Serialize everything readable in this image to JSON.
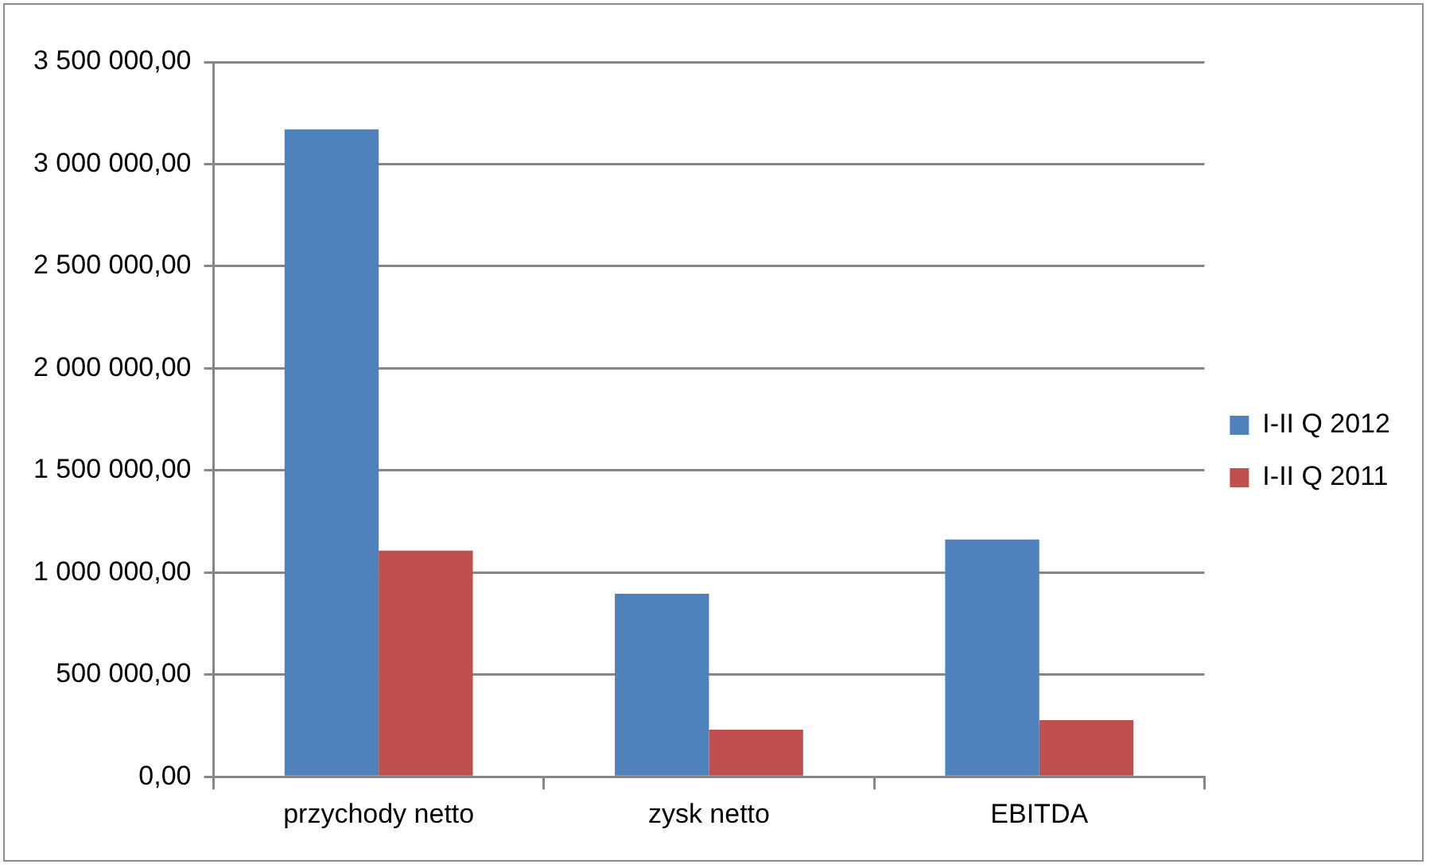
{
  "chart_data": {
    "type": "bar",
    "categories": [
      "przychody netto",
      "zysk netto",
      "EBITDA"
    ],
    "series": [
      {
        "name": "I-II Q 2012",
        "color": "#4f81bd",
        "values": [
          3170000,
          896000,
          1162000
        ]
      },
      {
        "name": "I-II Q 2011",
        "color": "#c0504d",
        "values": [
          1107000,
          230000,
          277000
        ]
      }
    ],
    "ylim": [
      0,
      3500000
    ],
    "yticks": [
      {
        "value": 0,
        "label": "0,00"
      },
      {
        "value": 500000,
        "label": "500 000,00"
      },
      {
        "value": 1000000,
        "label": "1 000 000,00"
      },
      {
        "value": 1500000,
        "label": "1 500 000,00"
      },
      {
        "value": 2000000,
        "label": "2 000 000,00"
      },
      {
        "value": 2500000,
        "label": "2 500 000,00"
      },
      {
        "value": 3000000,
        "label": "3 000 000,00"
      },
      {
        "value": 3500000,
        "label": "3 500 000,00"
      }
    ],
    "grid": "y",
    "legend": "right"
  }
}
